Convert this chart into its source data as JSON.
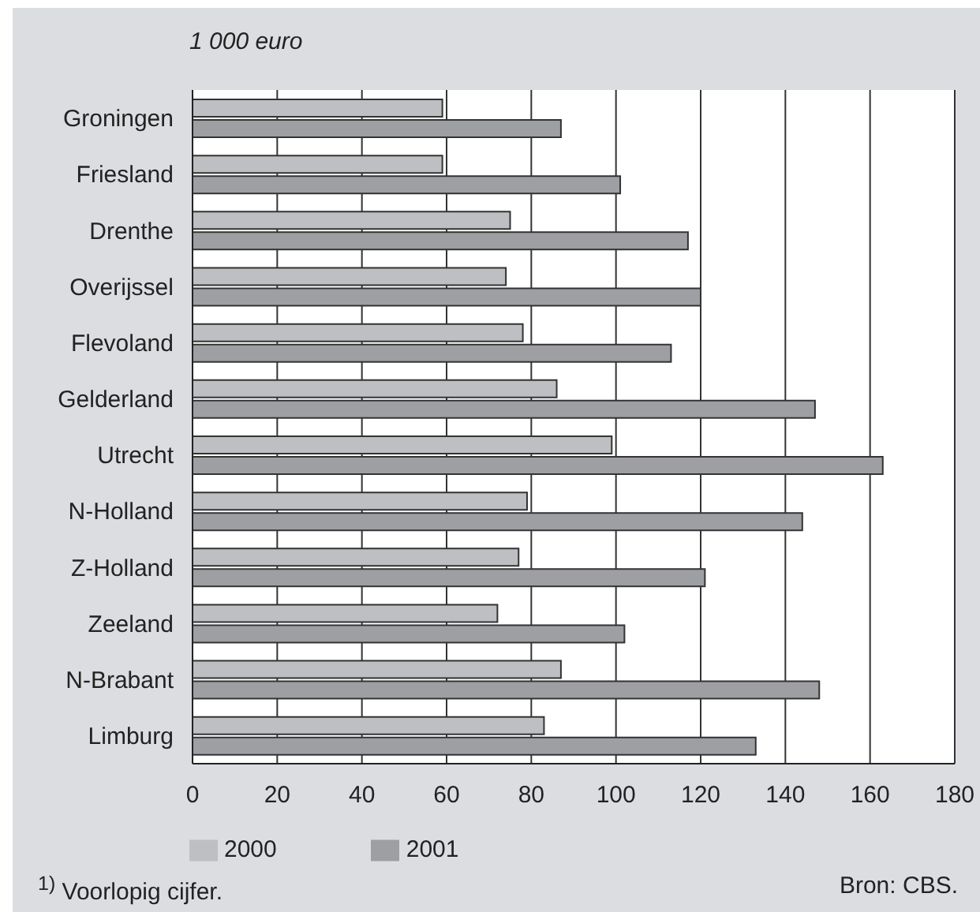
{
  "chart_data": {
    "type": "bar",
    "orientation": "horizontal",
    "xlabel": "1 000 euro",
    "categories": [
      "Groningen",
      "Friesland",
      "Drenthe",
      "Overijssel",
      "Flevoland",
      "Gelderland",
      "Utrecht",
      "N-Holland",
      "Z-Holland",
      "Zeeland",
      "N-Brabant",
      "Limburg"
    ],
    "series": [
      {
        "name": "2000",
        "color": "#bebfc3",
        "values": [
          59,
          59,
          75,
          74,
          78,
          86,
          99,
          79,
          77,
          72,
          87,
          83
        ]
      },
      {
        "name": "2001",
        "color": "#9d9fa3",
        "values": [
          87,
          101,
          117,
          120,
          113,
          147,
          163,
          144,
          121,
          102,
          148,
          133
        ]
      }
    ],
    "xlim": [
      0,
      180
    ],
    "xticks": [
      0,
      20,
      40,
      60,
      80,
      100,
      120,
      140,
      160,
      180
    ],
    "grid": "x",
    "legend": "bottom",
    "annotations": [
      "$^{1)}$ Voorlopig cijfer.",
      "Bron: CBS."
    ]
  }
}
